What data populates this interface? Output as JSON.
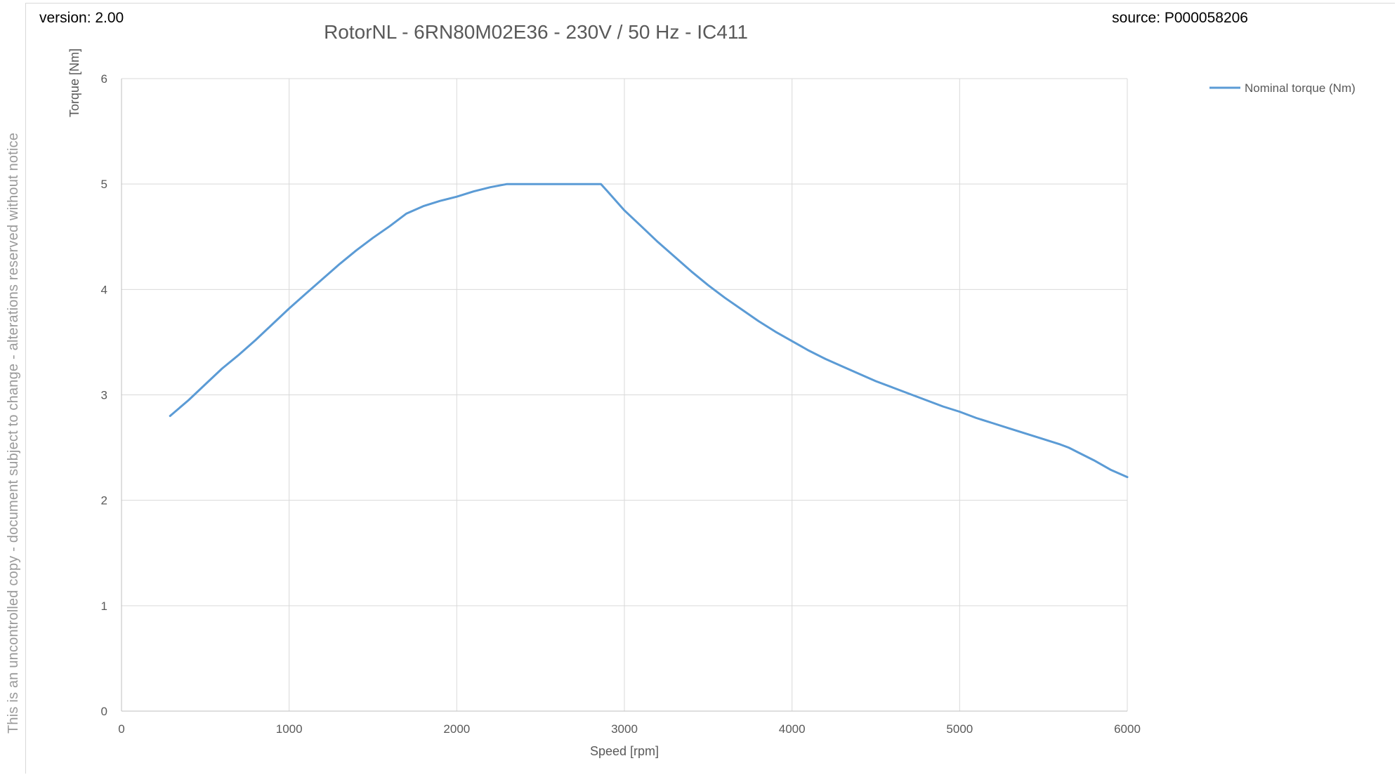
{
  "header": {
    "version": "version: 2.00",
    "source": "source: P000058206"
  },
  "side_note": "This is an uncontrolled copy - document subject to change - alterations reserved without notice",
  "colors": {
    "series": "#5b9bd5",
    "grid": "#d9d9d9",
    "axis": "#bfbfbf",
    "text": "#595959"
  },
  "chart_data": {
    "type": "line",
    "title": "RotorNL - 6RN80M02E36 - 230V / 50 Hz - IC411",
    "xlabel": "Speed [rpm]",
    "ylabel": "Torque [Nm]",
    "xlim": [
      0,
      6000
    ],
    "ylim": [
      0,
      6
    ],
    "xticks": [
      0,
      1000,
      2000,
      3000,
      4000,
      5000,
      6000
    ],
    "yticks": [
      0,
      1,
      2,
      3,
      4,
      5,
      6
    ],
    "grid": true,
    "legend": "top-right",
    "series": [
      {
        "name": "Nominal torque (Nm)",
        "x": [
          290,
          400,
          500,
          600,
          700,
          800,
          900,
          1000,
          1100,
          1200,
          1300,
          1400,
          1500,
          1600,
          1700,
          1800,
          1900,
          2000,
          2100,
          2200,
          2300,
          2400,
          2500,
          2600,
          2700,
          2800,
          2860,
          2900,
          3000,
          3100,
          3200,
          3300,
          3400,
          3500,
          3600,
          3700,
          3800,
          3900,
          4000,
          4100,
          4200,
          4300,
          4400,
          4500,
          4600,
          4700,
          4800,
          4900,
          5000,
          5100,
          5200,
          5300,
          5400,
          5500,
          5600,
          5650,
          5700,
          5800,
          5900,
          6000
        ],
        "y": [
          2.8,
          2.95,
          3.1,
          3.25,
          3.38,
          3.52,
          3.67,
          3.82,
          3.96,
          4.1,
          4.24,
          4.37,
          4.49,
          4.6,
          4.72,
          4.79,
          4.84,
          4.88,
          4.93,
          4.97,
          5.0,
          5.0,
          5.0,
          5.0,
          5.0,
          5.0,
          5.0,
          4.93,
          4.75,
          4.6,
          4.45,
          4.31,
          4.17,
          4.04,
          3.92,
          3.81,
          3.7,
          3.6,
          3.51,
          3.42,
          3.34,
          3.27,
          3.2,
          3.13,
          3.07,
          3.01,
          2.95,
          2.89,
          2.84,
          2.78,
          2.73,
          2.68,
          2.63,
          2.58,
          2.53,
          2.5,
          2.46,
          2.38,
          2.29,
          2.22
        ]
      }
    ]
  }
}
